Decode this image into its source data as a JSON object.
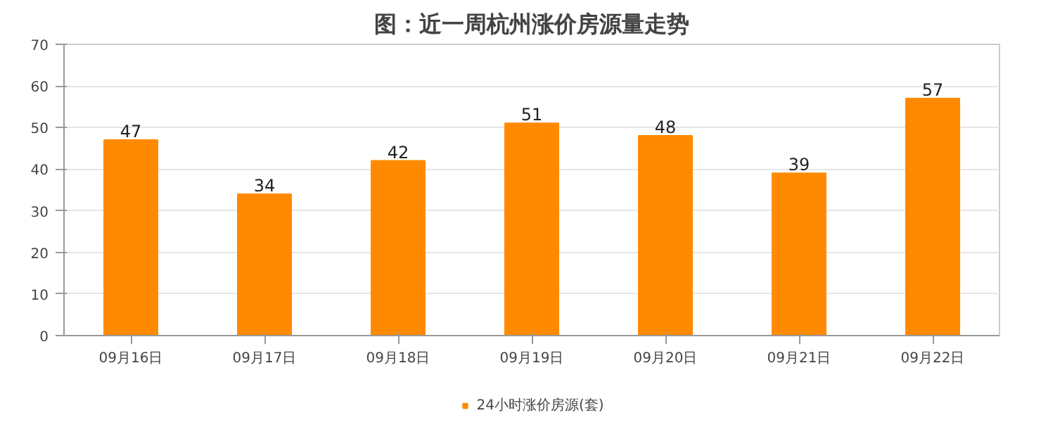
{
  "chart_data": {
    "type": "bar",
    "title": "图：近一周杭州涨价房源量走势",
    "categories": [
      "09月16日",
      "09月17日",
      "09月18日",
      "09月19日",
      "09月20日",
      "09月21日",
      "09月22日"
    ],
    "series": [
      {
        "name": "24小时涨价房源(套)",
        "color": "#ff8a00",
        "values": [
          47,
          34,
          42,
          51,
          48,
          39,
          57
        ]
      }
    ],
    "ylim": [
      0,
      70
    ],
    "yticks": [
      0,
      10,
      20,
      30,
      40,
      50,
      60,
      70
    ],
    "grid": "y",
    "legend": "bottom",
    "data_labels": true
  }
}
